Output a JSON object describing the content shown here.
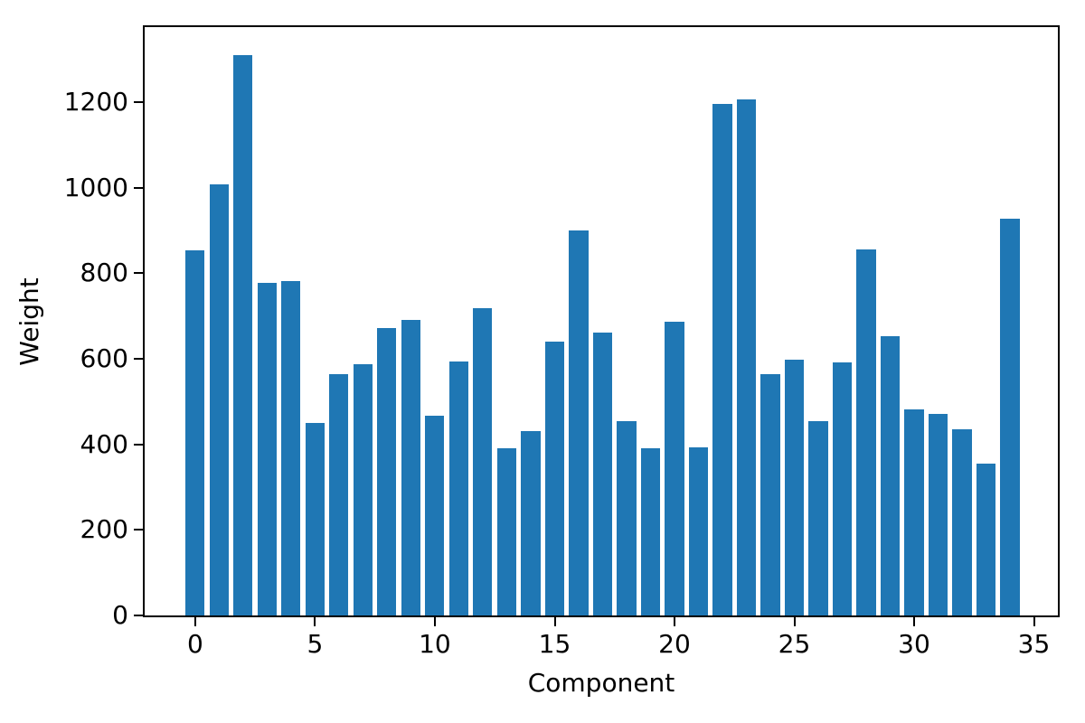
{
  "chart_data": {
    "type": "bar",
    "title": "",
    "xlabel": "Component",
    "ylabel": "Weight",
    "bar_color": "#1f77b4",
    "background_color": "#ffffff",
    "text_color": "#000000",
    "grid": false,
    "legend": null,
    "bar_width": 0.8,
    "x": [
      0,
      1,
      2,
      3,
      4,
      5,
      6,
      7,
      8,
      9,
      10,
      11,
      12,
      13,
      14,
      15,
      16,
      17,
      18,
      19,
      20,
      21,
      22,
      23,
      24,
      25,
      26,
      27,
      28,
      29,
      30,
      31,
      32,
      33,
      34
    ],
    "values": [
      853,
      1008,
      1310,
      777,
      782,
      449,
      565,
      588,
      671,
      691,
      467,
      594,
      719,
      391,
      431,
      640,
      900,
      661,
      455,
      391,
      686,
      393,
      1196,
      1207,
      565,
      597,
      455,
      592,
      856,
      653,
      481,
      471,
      435,
      355,
      928
    ],
    "xticks": [
      0,
      5,
      10,
      15,
      20,
      25,
      30,
      35
    ],
    "yticks": [
      0,
      200,
      400,
      600,
      800,
      1000,
      1200
    ],
    "xlim": [
      -2.11,
      36.0
    ],
    "ylim": [
      0,
      1375
    ]
  }
}
